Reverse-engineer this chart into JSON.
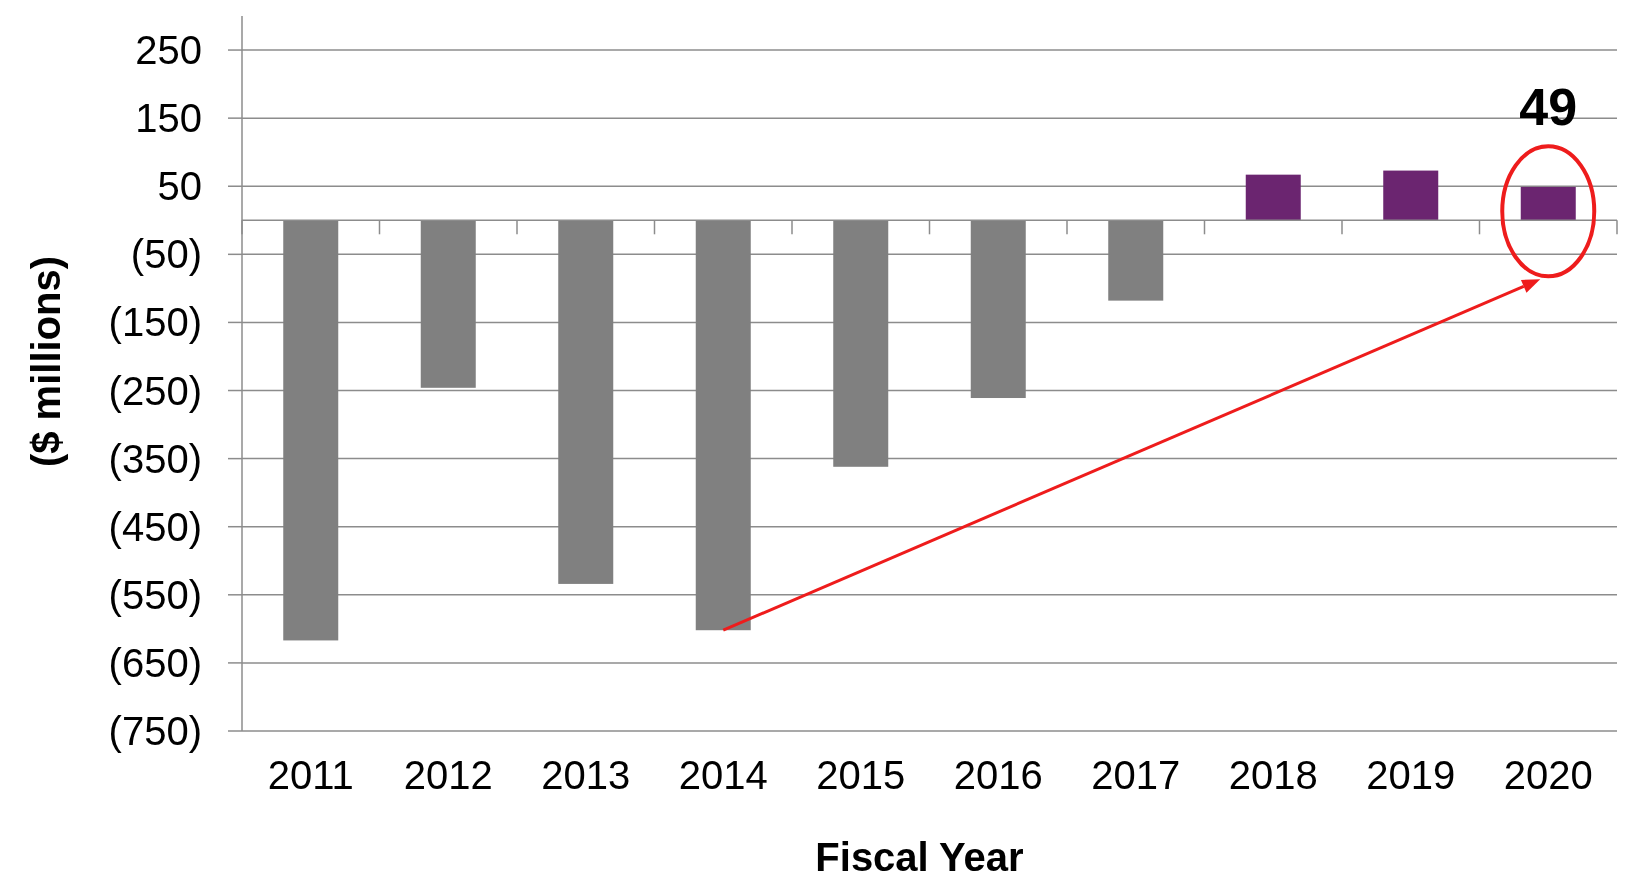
{
  "chart_data": {
    "type": "bar",
    "xlabel": "Fiscal Year",
    "ylabel": "($ millions)",
    "categories": [
      "2011",
      "2012",
      "2013",
      "2014",
      "2015",
      "2016",
      "2017",
      "2018",
      "2019",
      "2020"
    ],
    "values": [
      -617,
      -246,
      -534,
      -602,
      -362,
      -261,
      -118,
      67,
      73,
      49
    ],
    "colors": [
      "#808080",
      "#808080",
      "#808080",
      "#808080",
      "#808080",
      "#808080",
      "#808080",
      "#6b2570",
      "#6b2570",
      "#6b2570"
    ],
    "value_labels": [
      null,
      null,
      null,
      null,
      null,
      null,
      null,
      null,
      null,
      "49"
    ],
    "ylim": [
      -750,
      300
    ],
    "yticks": [
      250,
      150,
      50,
      {
        "value": -50,
        "label": "(50)"
      },
      {
        "value": -150,
        "label": "(150)"
      },
      {
        "value": -250,
        "label": "(250)"
      },
      {
        "value": -350,
        "label": "(350)"
      },
      {
        "value": -450,
        "label": "(450)"
      },
      {
        "value": -550,
        "label": "(550)"
      },
      {
        "value": -650,
        "label": "(650)"
      },
      {
        "value": -750,
        "label": "(750)"
      }
    ],
    "grid": "y"
  }
}
